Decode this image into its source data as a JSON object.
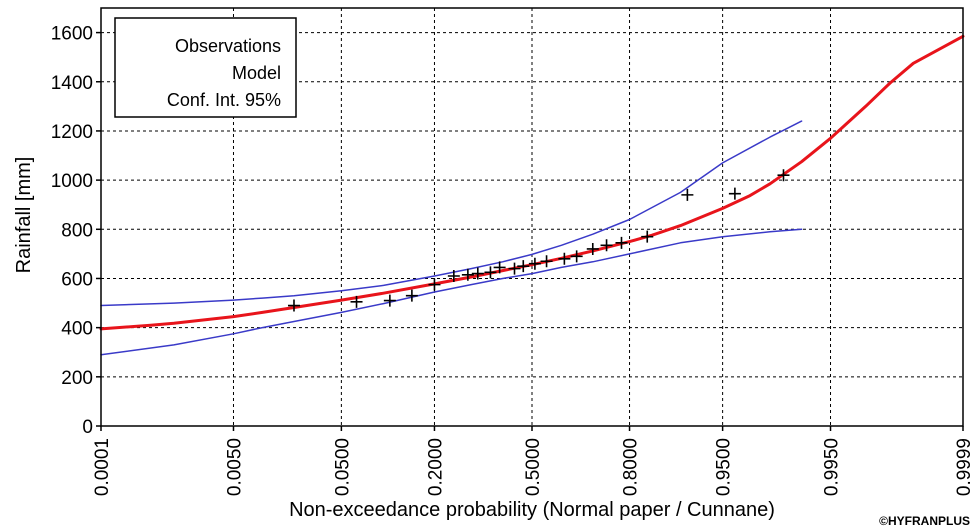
{
  "credit": "©HYFRANPLUS",
  "chart_data": {
    "type": "line",
    "xlabel": "Non-exceedance probability (Normal paper / Cunnane)",
    "ylabel": "Rainfall [mm]",
    "x_scale": "normal-probability",
    "xlim": [
      0.0001,
      0.9999
    ],
    "ylim": [
      0,
      1700
    ],
    "x_ticks": [
      "0.0001",
      "0.0050",
      "0.0500",
      "0.2000",
      "0.5000",
      "0.8000",
      "0.9500",
      "0.9950",
      "0.9999"
    ],
    "y_ticks": [
      "0",
      "200",
      "400",
      "600",
      "800",
      "1000",
      "1200",
      "1400",
      "1600"
    ],
    "grid": true,
    "legend": {
      "position": "top-left",
      "entries": [
        "Observations",
        "Model",
        "Conf. Int. 95%"
      ]
    },
    "colors": {
      "observations": "#000000",
      "model": "#e8141b",
      "confidence": "#3a3ac8"
    },
    "observations": {
      "x": [
        0.02,
        0.065,
        0.11,
        0.15,
        0.2,
        0.25,
        0.29,
        0.32,
        0.36,
        0.39,
        0.44,
        0.47,
        0.51,
        0.55,
        0.61,
        0.65,
        0.7,
        0.74,
        0.78,
        0.84,
        0.91,
        0.96,
        0.985
      ],
      "y": [
        490,
        505,
        510,
        530,
        575,
        610,
        615,
        620,
        625,
        645,
        640,
        650,
        660,
        670,
        680,
        690,
        720,
        735,
        745,
        770,
        940,
        945,
        1020
      ]
    },
    "series": [
      {
        "name": "Model",
        "x": [
          0.0001,
          0.0005,
          0.001,
          0.005,
          0.01,
          0.02,
          0.05,
          0.1,
          0.2,
          0.3,
          0.4,
          0.5,
          0.6,
          0.7,
          0.8,
          0.85,
          0.9,
          0.95,
          0.97,
          0.98,
          0.99,
          0.995,
          0.998,
          0.999,
          0.9995,
          0.9999
        ],
        "y": [
          395,
          410,
          418,
          445,
          462,
          482,
          512,
          540,
          578,
          606,
          632,
          656,
          682,
          712,
          750,
          776,
          815,
          885,
          937,
          985,
          1075,
          1170,
          1300,
          1395,
          1475,
          1585
        ]
      },
      {
        "name": "Upper 95% limit",
        "x": [
          0.0001,
          0.001,
          0.005,
          0.01,
          0.02,
          0.05,
          0.1,
          0.2,
          0.3,
          0.4,
          0.5,
          0.6,
          0.7,
          0.8,
          0.9,
          0.95,
          0.98,
          0.99
        ],
        "y": [
          490,
          500,
          512,
          520,
          530,
          550,
          572,
          610,
          640,
          668,
          698,
          735,
          780,
          840,
          950,
          1070,
          1175,
          1240
        ]
      },
      {
        "name": "Lower 95% limit",
        "x": [
          0.0001,
          0.001,
          0.005,
          0.01,
          0.02,
          0.05,
          0.1,
          0.2,
          0.3,
          0.4,
          0.5,
          0.6,
          0.7,
          0.8,
          0.9,
          0.95,
          0.98,
          0.99
        ],
        "y": [
          290,
          330,
          375,
          400,
          425,
          462,
          498,
          545,
          575,
          600,
          620,
          645,
          668,
          700,
          745,
          770,
          790,
          800
        ]
      }
    ]
  }
}
